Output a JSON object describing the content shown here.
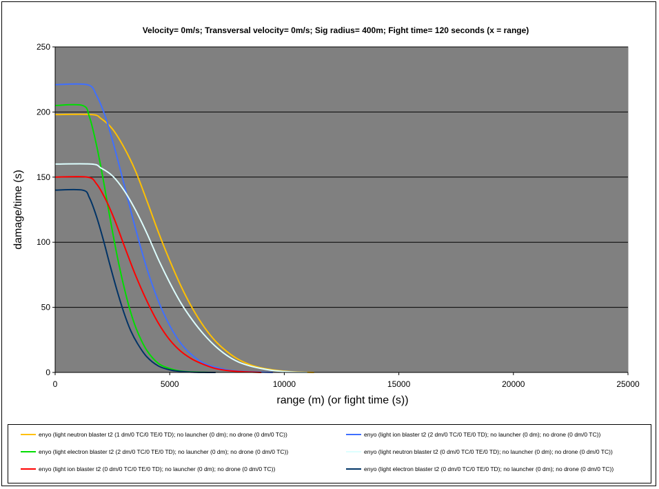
{
  "chart_data": {
    "type": "line",
    "title": "Velocity= 0m/s; Transversal velocity= 0m/s; Sig radius= 400m; Fight time= 120 seconds (x = range)",
    "xlabel": "range (m) (or fight time (s))",
    "ylabel": "damage/time (s)",
    "xlim": [
      0,
      25000
    ],
    "ylim": [
      0,
      250
    ],
    "xticks": [
      0,
      5000,
      10000,
      15000,
      20000,
      25000
    ],
    "yticks": [
      0,
      50,
      100,
      150,
      200,
      250
    ],
    "grid": "horizontal",
    "plot_background": "#808080",
    "legend_position": "bottom",
    "series": [
      {
        "name": "enyo (light neutron blaster t2 (1 dm/0 TC/0 TE/0 TD); no launcher (0 dm); no drone (0 dm/0 TC))",
        "color": "#ffc000",
        "x": [
          0,
          1600,
          2000,
          2500,
          3000,
          3500,
          4000,
          4500,
          5000,
          5500,
          6000,
          6500,
          7000,
          7500,
          8000,
          8500,
          9000,
          9500,
          10000,
          10500,
          11000,
          11300
        ],
        "y": [
          198,
          198,
          195,
          187,
          173,
          155,
          132,
          108,
          86,
          66,
          49,
          35,
          24,
          16,
          10,
          6,
          3.5,
          2,
          1,
          0.4,
          0.1,
          0
        ]
      },
      {
        "name": "enyo (light ion blaster t2 (2 dm/0 TC/0 TE/0 TD); no launcher (0 dm); no drone (0 dm/0 TC))",
        "color": "#3f6fff",
        "x": [
          0,
          1400,
          1800,
          2200,
          2600,
          3000,
          3500,
          4000,
          4500,
          5000,
          5500,
          6000,
          6500,
          7000,
          7500,
          8000,
          8500,
          9000,
          9500
        ],
        "y": [
          221,
          221,
          213,
          196,
          172,
          145,
          111,
          80,
          55,
          36,
          22,
          13,
          7,
          4,
          2,
          1,
          0.5,
          0.2,
          0
        ]
      },
      {
        "name": "enyo (light electron blaster t2 (2 dm/0 TC/0 TE/0 TD); no launcher (0 dm); no drone (0 dm/0 TC))",
        "color": "#00dd00",
        "x": [
          0,
          1200,
          1500,
          1800,
          2100,
          2400,
          2700,
          3000,
          3300,
          3600,
          4000,
          4500,
          5000,
          5500,
          6000,
          6500,
          7000
        ],
        "y": [
          205,
          205,
          196,
          175,
          148,
          118,
          90,
          66,
          46,
          31,
          17,
          7,
          3,
          1,
          0.4,
          0.1,
          0
        ]
      },
      {
        "name": "enyo (light neutron blaster t2 (0 dm/0 TC/0 TE/0 TD); no launcher (0 dm); no drone (0 dm/0 TC))",
        "color": "#ddffff",
        "x": [
          0,
          1600,
          2000,
          2500,
          3000,
          3500,
          4000,
          4500,
          5000,
          5500,
          6000,
          6500,
          7000,
          7500,
          8000,
          8500,
          9000,
          9500,
          10000,
          10500,
          11000
        ],
        "y": [
          160,
          160,
          157,
          151,
          140,
          125,
          107,
          87,
          69,
          53,
          40,
          29,
          20,
          13,
          8,
          5,
          3,
          1.5,
          0.7,
          0.2,
          0
        ]
      },
      {
        "name": "enyo (light ion blaster t2 (0 dm/0 TC/0 TE/0 TD); no launcher (0 dm); no drone (0 dm/0 TC))",
        "color": "#ff0000",
        "x": [
          0,
          1400,
          1800,
          2200,
          2600,
          3000,
          3500,
          4000,
          4500,
          5000,
          5500,
          6000,
          6500,
          7000,
          7500,
          8000,
          8500,
          9000
        ],
        "y": [
          150,
          150,
          145,
          133,
          117,
          98,
          75,
          55,
          38,
          25,
          16,
          10,
          6,
          3,
          1.5,
          0.7,
          0.3,
          0
        ]
      },
      {
        "name": "enyo (light electron blaster t2 (0 dm/0 TC/0 TE/0 TD); no launcher (0 dm); no drone (0 dm/0 TC))",
        "color": "#003366",
        "x": [
          0,
          1200,
          1500,
          1800,
          2100,
          2400,
          2700,
          3000,
          3300,
          3600,
          4000,
          4500,
          5000,
          5500,
          6000,
          6500,
          7000
        ],
        "y": [
          140,
          140,
          134,
          120,
          102,
          82,
          63,
          46,
          32,
          22,
          12,
          5,
          2,
          0.7,
          0.2,
          0.05,
          0
        ]
      }
    ]
  }
}
